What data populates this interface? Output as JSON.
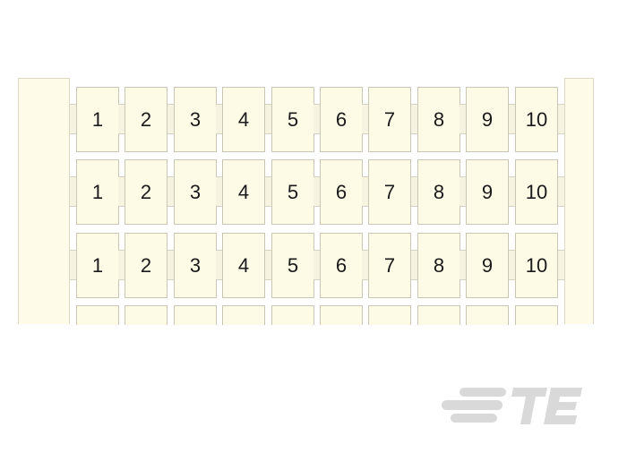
{
  "product": {
    "marker_rows": [
      [
        "1",
        "2",
        "3",
        "4",
        "5",
        "6",
        "7",
        "8",
        "9",
        "10"
      ],
      [
        "1",
        "2",
        "3",
        "4",
        "5",
        "6",
        "7",
        "8",
        "9",
        "10"
      ],
      [
        "1",
        "2",
        "3",
        "4",
        "5",
        "6",
        "7",
        "8",
        "9",
        "10"
      ],
      [
        "",
        "",
        "",
        "",
        "",
        "",
        "",
        "",
        "",
        ""
      ]
    ],
    "colors": {
      "marker": "#fdfae6",
      "border": "#c9c6b6",
      "logo": "#d9d9d9"
    }
  },
  "logo": {
    "text": "TE",
    "icon": "te-connectivity-logo"
  }
}
